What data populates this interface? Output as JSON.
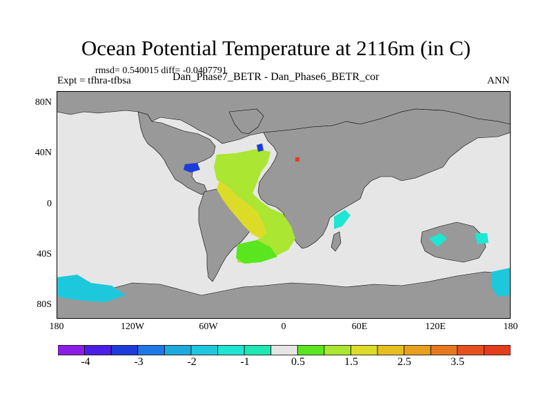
{
  "title": "Ocean Potential Temperature at 2116m (in C)",
  "stats_text": "rmsd= 0.540015 diff= -0.0407791",
  "expt_label": "Expt = tfhra-tfbsa",
  "subtitle": "Dan_Phase7_BETR - Dan_Phase6_BETR_cor",
  "season": "ANN",
  "lat_labels": [
    "80N",
    "40N",
    "0",
    "40S",
    "80S"
  ],
  "lon_labels": [
    "180",
    "120W",
    "60W",
    "0",
    "60E",
    "120E",
    "180"
  ],
  "colorbar": {
    "labels": [
      "-4",
      "-3",
      "-2",
      "-1",
      "0.5",
      "1.5",
      "2.5",
      "3.5"
    ],
    "colors": [
      "#8a1ee6",
      "#4b1ee6",
      "#1e3cdc",
      "#1e78e6",
      "#1eaadc",
      "#1ec8dc",
      "#1ee6d2",
      "#1ee6b4",
      "#e6e6e6",
      "#5ae61e",
      "#aae632",
      "#dcdc28",
      "#e6be1e",
      "#e6a01e",
      "#e6781e",
      "#e6501e",
      "#e63c1e"
    ]
  },
  "colors": {
    "land": "#999999",
    "ocean_nodata": "#e6e6e6",
    "coast": "#000000"
  }
}
